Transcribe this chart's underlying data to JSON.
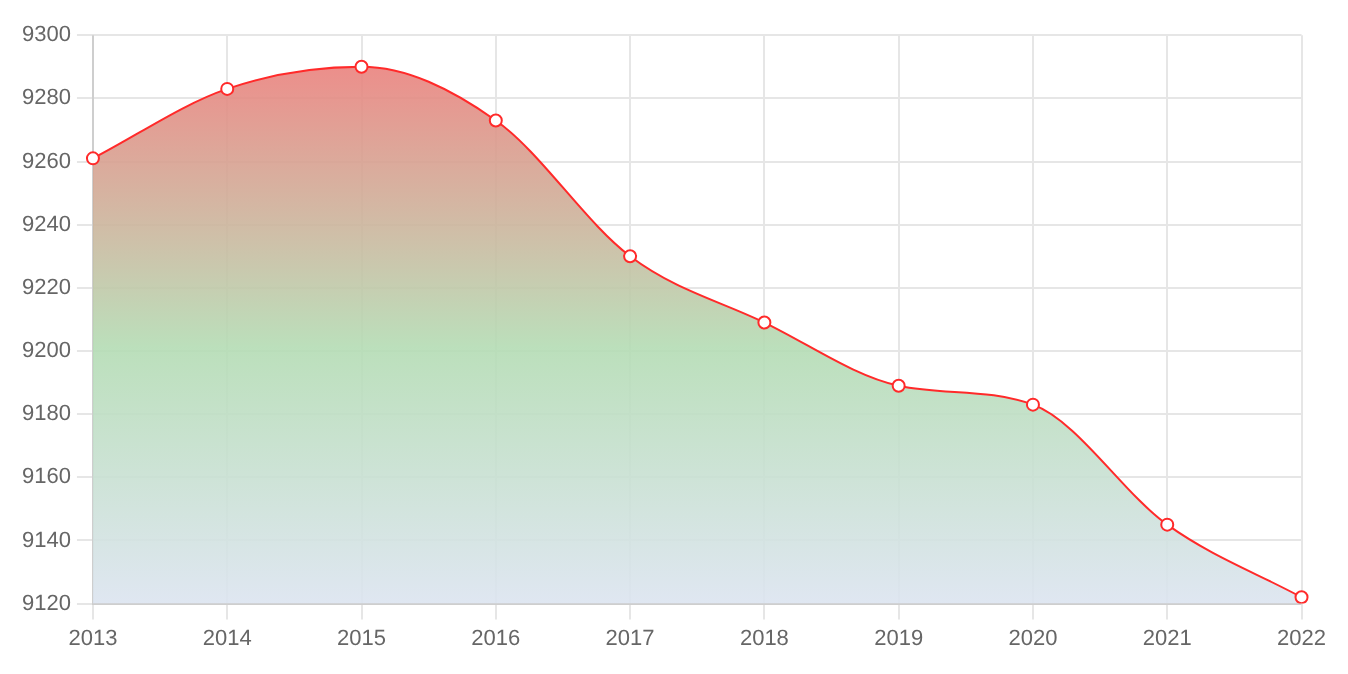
{
  "chart_data": {
    "type": "area",
    "categories": [
      "2013",
      "2014",
      "2015",
      "2016",
      "2017",
      "2018",
      "2019",
      "2020",
      "2021",
      "2022"
    ],
    "series": [
      {
        "color": "#ff2a2a",
        "values": [
          9261,
          9283,
          9290,
          9273,
          9230,
          9209,
          9189,
          9183,
          9145,
          9122
        ]
      }
    ],
    "ylim": [
      9120,
      9300
    ],
    "yticks": [
      9120,
      9140,
      9160,
      9180,
      9200,
      9220,
      9240,
      9260,
      9280,
      9300
    ],
    "grid": true,
    "legend": false,
    "marker": "circle",
    "line_style": "solid"
  }
}
